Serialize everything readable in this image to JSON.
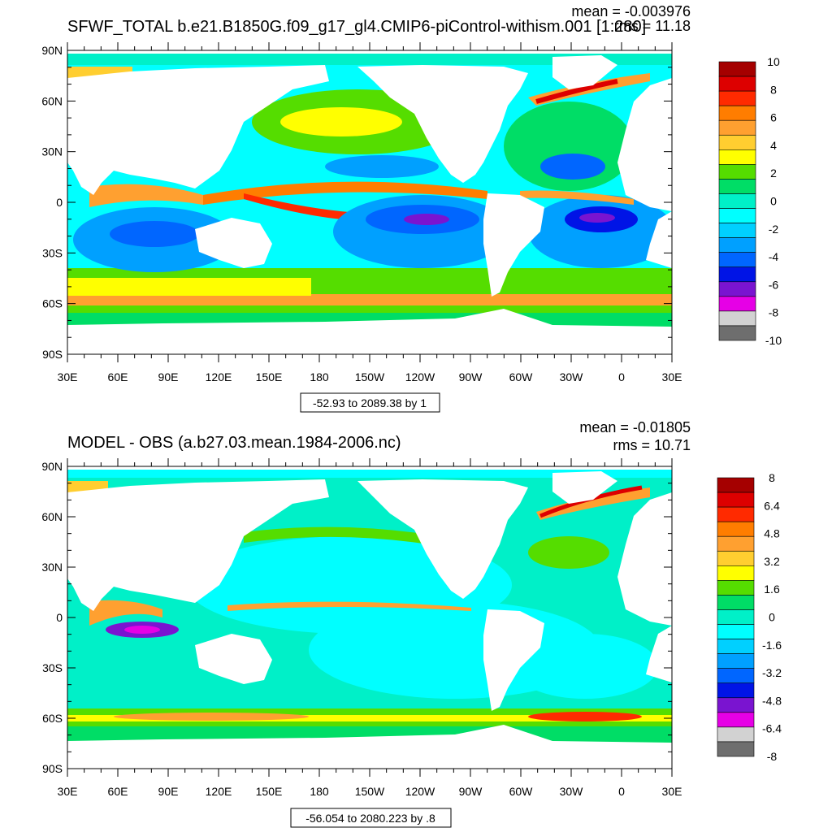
{
  "panels": [
    {
      "title": "SFWF_TOTAL b.e21.B1850G.f09_g17_gl4.CMIP6-piControl-withism.001 [1:280]",
      "mean_label": "mean = -0.003976",
      "rms_label": "rms = 11.18",
      "range_label": "-52.93 to 2089.38 by 1",
      "lat_ticks": [
        "90N",
        "60N",
        "30N",
        "0",
        "30S",
        "60S",
        "90S"
      ],
      "lon_ticks": [
        "30E",
        "60E",
        "90E",
        "120E",
        "150E",
        "180",
        "150W",
        "120W",
        "90W",
        "60W",
        "30W",
        "0",
        "30E"
      ],
      "colorbar": {
        "labels": [
          "10",
          "8",
          "6",
          "4",
          "2",
          "0",
          "-2",
          "-4",
          "-6",
          "-8",
          "-10"
        ],
        "colors": [
          "#a50000",
          "#dd0000",
          "#ff2a00",
          "#ff7d00",
          "#ffa030",
          "#ffce30",
          "#ffff00",
          "#55dd00",
          "#00dd66",
          "#00f0c8",
          "#00ffff",
          "#00d0ff",
          "#00a0ff",
          "#0066ff",
          "#0014e6",
          "#7a14d0",
          "#e600e6",
          "#d2d2d2",
          "#6e6e6e"
        ]
      }
    },
    {
      "title": "MODEL - OBS (a.b27.03.mean.1984-2006.nc)",
      "mean_label": "mean = -0.01805",
      "rms_label": "rms = 10.71",
      "range_label": "-56.054 to 2080.223 by .8",
      "lat_ticks": [
        "90N",
        "60N",
        "30N",
        "0",
        "30S",
        "60S",
        "90S"
      ],
      "lon_ticks": [
        "30E",
        "60E",
        "90E",
        "120E",
        "150E",
        "180",
        "150W",
        "120W",
        "90W",
        "60W",
        "30W",
        "0",
        "30E"
      ],
      "colorbar": {
        "labels": [
          "8",
          "6.4",
          "4.8",
          "3.2",
          "1.6",
          "0",
          "-1.6",
          "-3.2",
          "-4.8",
          "-6.4",
          "-8"
        ],
        "colors": [
          "#a50000",
          "#dd0000",
          "#ff2a00",
          "#ff7d00",
          "#ffa030",
          "#ffce30",
          "#ffff00",
          "#55dd00",
          "#00dd66",
          "#00f0c8",
          "#00ffff",
          "#00d0ff",
          "#00a0ff",
          "#0066ff",
          "#0014e6",
          "#7a14d0",
          "#e600e6",
          "#d2d2d2",
          "#6e6e6e"
        ]
      }
    }
  ]
}
